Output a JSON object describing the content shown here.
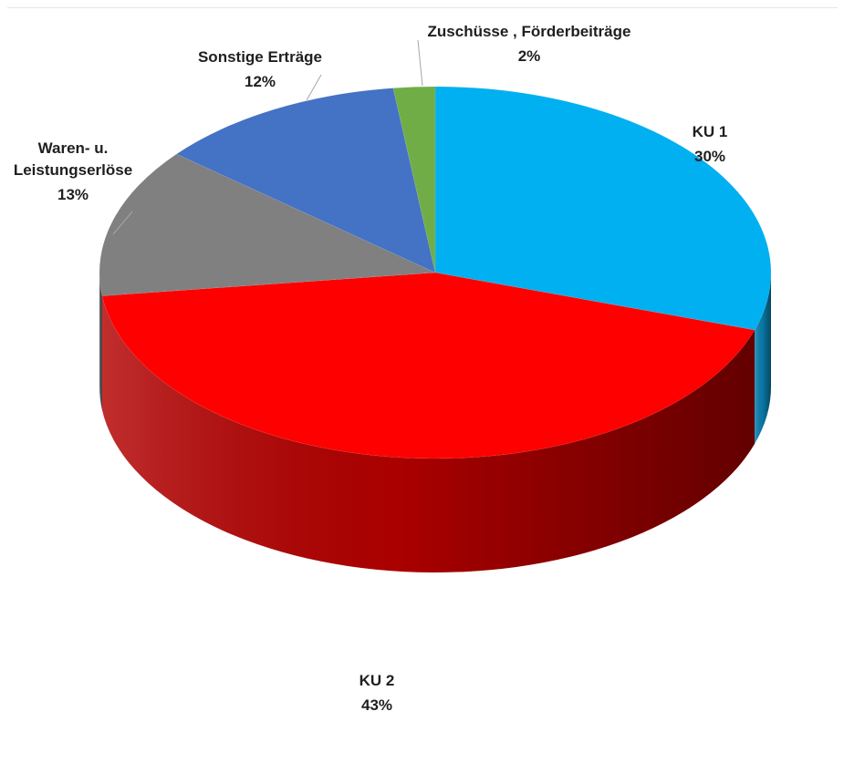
{
  "chart_data": {
    "type": "pie",
    "title": "",
    "style": "3d-tilted",
    "slices": [
      {
        "label": "KU 1",
        "value": 30,
        "display": "30%",
        "color": "#00B0F0",
        "side_color": "#0A7FB0"
      },
      {
        "label": "KU 2",
        "value": 43,
        "display": "43%",
        "color": "#FF0000",
        "side_color": "#B30000"
      },
      {
        "label": "Waren- u. Leistungserlöse",
        "label_lines": [
          "Waren- u.",
          "Leistungserlöse"
        ],
        "value": 13,
        "display": "13%",
        "color": "#808080",
        "side_color": "#595959"
      },
      {
        "label": "Sonstige Erträge",
        "value": 12,
        "display": "12%",
        "color": "#4472C4",
        "side_color": "#2F528F"
      },
      {
        "label": "Zuschüsse , Förderbeiträge",
        "value": 2,
        "display": "2%",
        "color": "#70AD47",
        "side_color": "#4E7A31"
      }
    ]
  }
}
